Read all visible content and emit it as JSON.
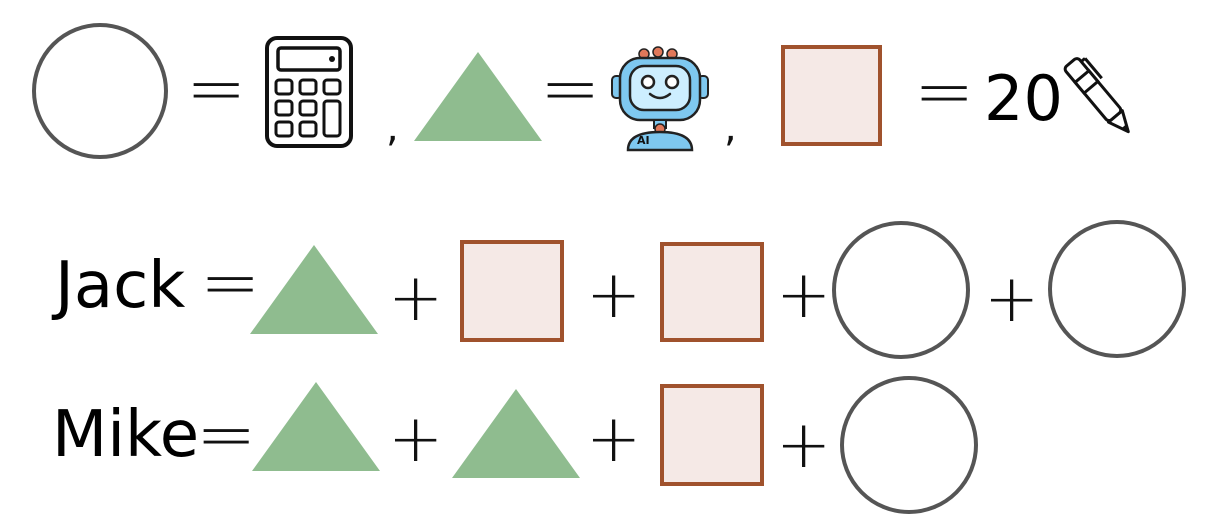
{
  "legend": {
    "equals": "=",
    "comma": ",",
    "circle_icon": "calculator-icon",
    "triangle_icon": "robot-icon",
    "robot_badge": "AI",
    "square_value": "20",
    "square_icon": "pen-icon"
  },
  "equations": {
    "plus": "+",
    "jack": {
      "name": "Jack",
      "terms": [
        "triangle",
        "square",
        "square",
        "circle",
        "circle"
      ]
    },
    "mike": {
      "name": "Mike",
      "terms": [
        "triangle",
        "triangle",
        "square",
        "circle"
      ]
    }
  },
  "colors": {
    "circle_border": "#555555",
    "square_border": "#a0522d",
    "square_fill": "#f5e9e6",
    "triangle_fill": "#8fbc8f",
    "robot_body": "#7ec8f0"
  }
}
